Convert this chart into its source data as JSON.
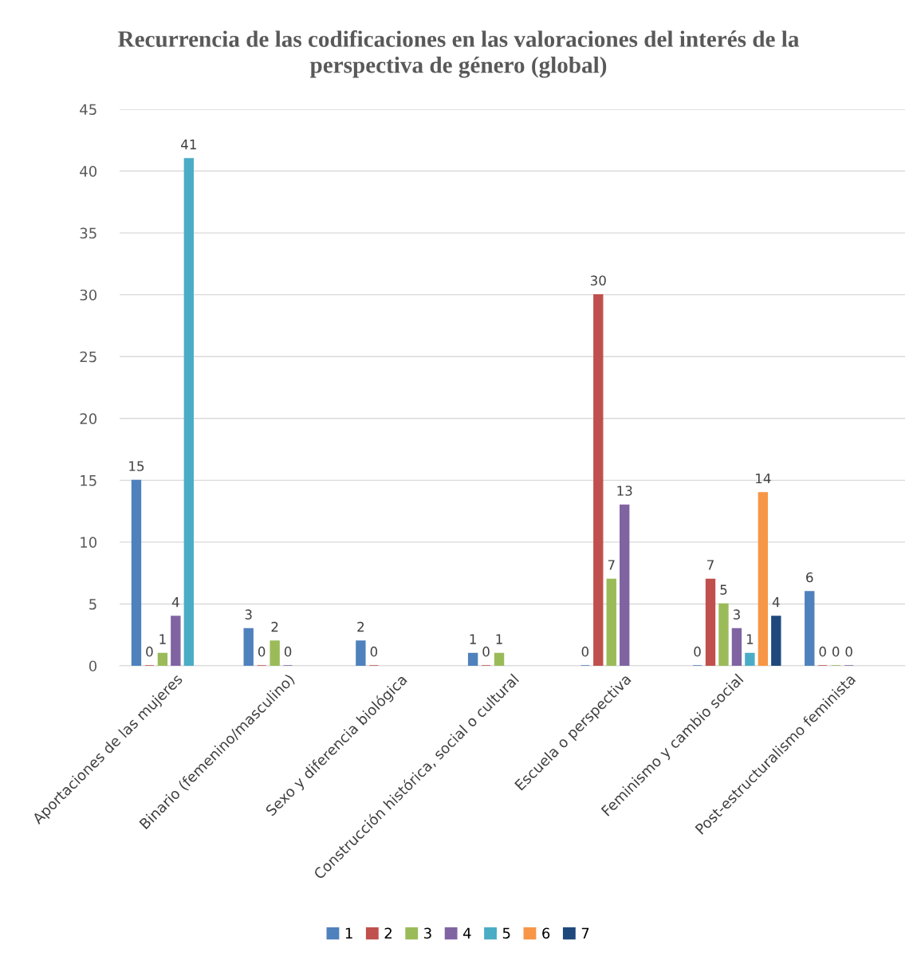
{
  "chart_data": {
    "type": "bar",
    "title": "Recurrencia de las codificaciones en las valoraciones del interés de la perspectiva de género (global)",
    "categories": [
      "Aportaciones de las mujeres",
      "Binario (femenino/masculino)",
      "Sexo y diferencia biológica",
      "Construcción histórica, social o cultural",
      "Escuela o perspectiva",
      "Feminismo y cambio social",
      "Post-estructuralismo feminista"
    ],
    "series": [
      {
        "name": "1",
        "color": "#4f81bd",
        "values": [
          15,
          3,
          2,
          1,
          0,
          0,
          6
        ]
      },
      {
        "name": "2",
        "color": "#c0504d",
        "values": [
          0,
          0,
          0,
          0,
          30,
          7,
          0
        ]
      },
      {
        "name": "3",
        "color": "#9bbb59",
        "values": [
          1,
          2,
          null,
          1,
          7,
          5,
          0
        ]
      },
      {
        "name": "4",
        "color": "#8064a2",
        "values": [
          4,
          0,
          null,
          null,
          13,
          3,
          0
        ]
      },
      {
        "name": "5",
        "color": "#4bacc6",
        "values": [
          41,
          null,
          null,
          null,
          null,
          1,
          null
        ]
      },
      {
        "name": "6",
        "color": "#f79646",
        "values": [
          null,
          null,
          null,
          null,
          null,
          14,
          null
        ]
      },
      {
        "name": "7",
        "color": "#1f497d",
        "values": [
          null,
          null,
          null,
          null,
          null,
          4,
          null
        ]
      }
    ],
    "ylim": [
      0,
      45
    ],
    "yticks": [
      0,
      5,
      10,
      15,
      20,
      25,
      30,
      35,
      40,
      45
    ],
    "grid": "y",
    "legend": "bottom",
    "data_labels": true
  }
}
